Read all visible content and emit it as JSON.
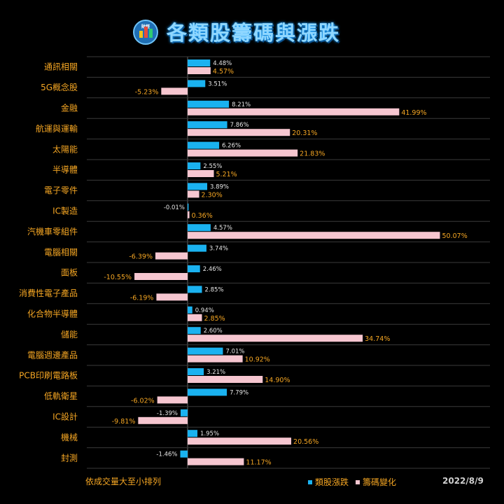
{
  "header": {
    "logo_text": "財經",
    "title": "各類股籌碼與漲跌"
  },
  "footer": {
    "note": "依成交量大至小排列",
    "date": "2022/8/9"
  },
  "colors": {
    "series_a": "#1ab2f0",
    "series_b": "#f6c6d0",
    "label_orange": "#f5a623",
    "label_white": "#e6e6e6",
    "grid": "#3a3a3a"
  },
  "chart_data": {
    "type": "bar",
    "orientation": "horizontal",
    "categories": [
      "通訊相關",
      "5G概念股",
      "金融",
      "航運與運輸",
      "太陽能",
      "半導體",
      "電子零件",
      "IC製造",
      "汽機車零組件",
      "電腦相關",
      "面板",
      "消費性電子產品",
      "化合物半導體",
      "儲能",
      "電腦週邊產品",
      "PCB印刷電路板",
      "低軌衛星",
      "IC設計",
      "機械",
      "封測"
    ],
    "series": [
      {
        "name": "類股漲跌",
        "values": [
          4.48,
          3.51,
          8.21,
          7.86,
          6.26,
          2.55,
          3.89,
          -0.01,
          4.57,
          3.74,
          2.46,
          2.85,
          0.94,
          2.6,
          7.01,
          3.21,
          7.79,
          -1.39,
          1.95,
          -1.46
        ]
      },
      {
        "name": "籌碼變化",
        "values": [
          4.57,
          -5.23,
          41.99,
          20.31,
          21.83,
          5.21,
          2.3,
          0.36,
          50.07,
          -6.39,
          -10.55,
          -6.19,
          2.85,
          34.74,
          10.92,
          14.9,
          -6.02,
          -9.81,
          20.56,
          11.17
        ]
      }
    ],
    "legend_position": "bottom-right",
    "grid": true
  }
}
